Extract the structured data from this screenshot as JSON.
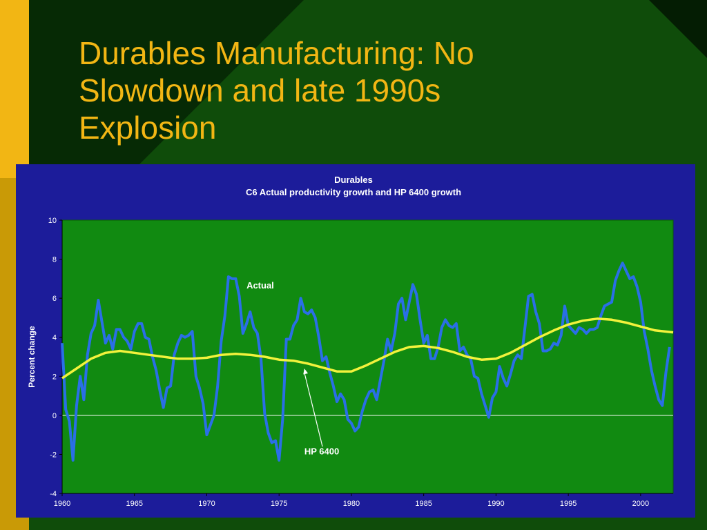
{
  "slide": {
    "title_lines": [
      "Durables Manufacturing:  No",
      "Slowdown and late 1990s",
      "Explosion"
    ],
    "colors": {
      "background": "#0f4c0a",
      "background_dark": "#062a05",
      "gold_bar": "#f2b614",
      "gold_dark": "#c99a06",
      "title": "#f2b614"
    }
  },
  "chart_data": {
    "type": "line",
    "title": "Durables",
    "subtitle": "C6 Actual productivity growth and HP 6400 growth",
    "xlabel": "",
    "ylabel": "Percent change",
    "xlim": [
      1960,
      2002.25
    ],
    "ylim": [
      -4,
      10
    ],
    "x_ticks": [
      1960,
      1965,
      1970,
      1975,
      1980,
      1985,
      1990,
      1995,
      2000
    ],
    "y_ticks": [
      -4,
      -2,
      0,
      2,
      4,
      6,
      8,
      10
    ],
    "grid": false,
    "zero_line": true,
    "colors": {
      "panel": "#1c1c9a",
      "plot_area": "#118a11",
      "actual": "#2a6fe6",
      "hp": "#f2f23c",
      "text": "#ffffff"
    },
    "series": [
      {
        "name": "Actual",
        "color": "#2a6fe6",
        "points": [
          [
            1960.0,
            3.7
          ],
          [
            1960.25,
            0.3
          ],
          [
            1960.5,
            -0.3
          ],
          [
            1960.75,
            -2.3
          ],
          [
            1961.0,
            0.5
          ],
          [
            1961.25,
            2.0
          ],
          [
            1961.5,
            0.8
          ],
          [
            1961.75,
            3.1
          ],
          [
            1962.0,
            4.2
          ],
          [
            1962.25,
            4.6
          ],
          [
            1962.5,
            5.9
          ],
          [
            1962.75,
            4.8
          ],
          [
            1963.0,
            3.7
          ],
          [
            1963.25,
            4.1
          ],
          [
            1963.5,
            3.4
          ],
          [
            1963.75,
            4.4
          ],
          [
            1964.0,
            4.4
          ],
          [
            1964.25,
            4.0
          ],
          [
            1964.5,
            3.8
          ],
          [
            1964.75,
            3.4
          ],
          [
            1965.0,
            4.3
          ],
          [
            1965.25,
            4.7
          ],
          [
            1965.5,
            4.7
          ],
          [
            1965.75,
            4.0
          ],
          [
            1966.0,
            3.9
          ],
          [
            1966.25,
            3.0
          ],
          [
            1966.5,
            2.3
          ],
          [
            1966.75,
            1.3
          ],
          [
            1967.0,
            0.4
          ],
          [
            1967.25,
            1.4
          ],
          [
            1967.5,
            1.5
          ],
          [
            1967.75,
            3.1
          ],
          [
            1968.0,
            3.7
          ],
          [
            1968.25,
            4.1
          ],
          [
            1968.5,
            4.0
          ],
          [
            1968.75,
            4.1
          ],
          [
            1969.0,
            4.3
          ],
          [
            1969.25,
            2.0
          ],
          [
            1969.5,
            1.4
          ],
          [
            1969.75,
            0.6
          ],
          [
            1970.0,
            -1.0
          ],
          [
            1970.25,
            -0.5
          ],
          [
            1970.5,
            0.0
          ],
          [
            1970.75,
            1.5
          ],
          [
            1971.0,
            3.8
          ],
          [
            1971.25,
            5.1
          ],
          [
            1971.5,
            7.1
          ],
          [
            1971.75,
            7.0
          ],
          [
            1972.0,
            7.0
          ],
          [
            1972.25,
            6.1
          ],
          [
            1972.5,
            4.2
          ],
          [
            1972.75,
            4.7
          ],
          [
            1973.0,
            5.3
          ],
          [
            1973.25,
            4.5
          ],
          [
            1973.5,
            4.2
          ],
          [
            1973.75,
            2.9
          ],
          [
            1974.0,
            0.1
          ],
          [
            1974.25,
            -0.9
          ],
          [
            1974.5,
            -1.4
          ],
          [
            1974.75,
            -1.3
          ],
          [
            1975.0,
            -2.3
          ],
          [
            1975.25,
            -0.2
          ],
          [
            1975.5,
            3.9
          ],
          [
            1975.75,
            3.9
          ],
          [
            1976.0,
            4.6
          ],
          [
            1976.25,
            4.9
          ],
          [
            1976.5,
            6.0
          ],
          [
            1976.75,
            5.3
          ],
          [
            1977.0,
            5.2
          ],
          [
            1977.25,
            5.4
          ],
          [
            1977.5,
            5.0
          ],
          [
            1977.75,
            4.0
          ],
          [
            1978.0,
            2.8
          ],
          [
            1978.25,
            3.0
          ],
          [
            1978.5,
            2.2
          ],
          [
            1978.75,
            1.5
          ],
          [
            1979.0,
            0.7
          ],
          [
            1979.25,
            1.1
          ],
          [
            1979.5,
            0.8
          ],
          [
            1979.75,
            -0.2
          ],
          [
            1980.0,
            -0.4
          ],
          [
            1980.25,
            -0.8
          ],
          [
            1980.5,
            -0.6
          ],
          [
            1980.75,
            0.2
          ],
          [
            1981.0,
            0.8
          ],
          [
            1981.25,
            1.2
          ],
          [
            1981.5,
            1.3
          ],
          [
            1981.75,
            0.8
          ],
          [
            1982.0,
            1.8
          ],
          [
            1982.25,
            2.8
          ],
          [
            1982.5,
            3.9
          ],
          [
            1982.75,
            3.3
          ],
          [
            1983.0,
            4.2
          ],
          [
            1983.25,
            5.7
          ],
          [
            1983.5,
            6.0
          ],
          [
            1983.75,
            4.9
          ],
          [
            1984.0,
            5.8
          ],
          [
            1984.25,
            6.7
          ],
          [
            1984.5,
            6.2
          ],
          [
            1984.75,
            4.9
          ],
          [
            1985.0,
            3.7
          ],
          [
            1985.25,
            4.1
          ],
          [
            1985.5,
            2.9
          ],
          [
            1985.75,
            2.9
          ],
          [
            1986.0,
            3.5
          ],
          [
            1986.25,
            4.5
          ],
          [
            1986.5,
            4.9
          ],
          [
            1986.75,
            4.6
          ],
          [
            1987.0,
            4.5
          ],
          [
            1987.25,
            4.7
          ],
          [
            1987.5,
            3.3
          ],
          [
            1987.75,
            3.5
          ],
          [
            1988.0,
            3.1
          ],
          [
            1988.25,
            2.9
          ],
          [
            1988.5,
            2.0
          ],
          [
            1988.75,
            1.9
          ],
          [
            1989.0,
            1.1
          ],
          [
            1989.25,
            0.5
          ],
          [
            1989.5,
            -0.1
          ],
          [
            1989.75,
            0.9
          ],
          [
            1990.0,
            1.2
          ],
          [
            1990.25,
            2.5
          ],
          [
            1990.5,
            1.9
          ],
          [
            1990.75,
            1.5
          ],
          [
            1991.0,
            2.1
          ],
          [
            1991.25,
            2.8
          ],
          [
            1991.5,
            3.1
          ],
          [
            1991.75,
            2.9
          ],
          [
            1992.0,
            4.5
          ],
          [
            1992.25,
            6.1
          ],
          [
            1992.5,
            6.2
          ],
          [
            1992.75,
            5.3
          ],
          [
            1993.0,
            4.7
          ],
          [
            1993.25,
            3.3
          ],
          [
            1993.5,
            3.3
          ],
          [
            1993.75,
            3.4
          ],
          [
            1994.0,
            3.7
          ],
          [
            1994.25,
            3.6
          ],
          [
            1994.5,
            4.1
          ],
          [
            1994.75,
            5.6
          ],
          [
            1995.0,
            4.6
          ],
          [
            1995.25,
            4.4
          ],
          [
            1995.5,
            4.2
          ],
          [
            1995.75,
            4.5
          ],
          [
            1996.0,
            4.4
          ],
          [
            1996.25,
            4.2
          ],
          [
            1996.5,
            4.4
          ],
          [
            1996.75,
            4.4
          ],
          [
            1997.0,
            4.5
          ],
          [
            1997.25,
            5.1
          ],
          [
            1997.5,
            5.6
          ],
          [
            1997.75,
            5.7
          ],
          [
            1998.0,
            5.8
          ],
          [
            1998.25,
            6.9
          ],
          [
            1998.5,
            7.4
          ],
          [
            1998.75,
            7.8
          ],
          [
            1999.0,
            7.4
          ],
          [
            1999.25,
            7.0
          ],
          [
            1999.5,
            7.1
          ],
          [
            1999.75,
            6.6
          ],
          [
            2000.0,
            5.8
          ],
          [
            2000.25,
            4.3
          ],
          [
            2000.5,
            3.4
          ],
          [
            2000.75,
            2.3
          ],
          [
            2001.0,
            1.5
          ],
          [
            2001.25,
            0.8
          ],
          [
            2001.5,
            0.5
          ],
          [
            2001.75,
            2.2
          ],
          [
            2002.0,
            3.5
          ]
        ]
      },
      {
        "name": "HP 6400",
        "color": "#f2f23c",
        "points": [
          [
            1960.0,
            1.9
          ],
          [
            1961.0,
            2.4
          ],
          [
            1962.0,
            2.9
          ],
          [
            1963.0,
            3.2
          ],
          [
            1964.0,
            3.3
          ],
          [
            1965.0,
            3.2
          ],
          [
            1966.0,
            3.1
          ],
          [
            1967.0,
            3.0
          ],
          [
            1968.0,
            2.9
          ],
          [
            1969.0,
            2.9
          ],
          [
            1970.0,
            2.95
          ],
          [
            1971.0,
            3.1
          ],
          [
            1972.0,
            3.15
          ],
          [
            1973.0,
            3.1
          ],
          [
            1974.0,
            3.0
          ],
          [
            1975.0,
            2.85
          ],
          [
            1976.0,
            2.8
          ],
          [
            1977.0,
            2.65
          ],
          [
            1978.0,
            2.45
          ],
          [
            1979.0,
            2.25
          ],
          [
            1980.0,
            2.25
          ],
          [
            1981.0,
            2.55
          ],
          [
            1982.0,
            2.9
          ],
          [
            1983.0,
            3.25
          ],
          [
            1984.0,
            3.5
          ],
          [
            1985.0,
            3.55
          ],
          [
            1986.0,
            3.45
          ],
          [
            1987.0,
            3.25
          ],
          [
            1988.0,
            3.0
          ],
          [
            1989.0,
            2.85
          ],
          [
            1990.0,
            2.9
          ],
          [
            1991.0,
            3.2
          ],
          [
            1992.0,
            3.6
          ],
          [
            1993.0,
            4.0
          ],
          [
            1994.0,
            4.35
          ],
          [
            1995.0,
            4.65
          ],
          [
            1996.0,
            4.85
          ],
          [
            1997.0,
            4.95
          ],
          [
            1998.0,
            4.9
          ],
          [
            1999.0,
            4.75
          ],
          [
            2000.0,
            4.55
          ],
          [
            2001.0,
            4.35
          ],
          [
            2002.25,
            4.25
          ]
        ]
      }
    ],
    "annotations": [
      {
        "text": "Actual",
        "series": "Actual"
      },
      {
        "text": "HP 6400",
        "series": "HP 6400",
        "arrow": true
      }
    ]
  }
}
